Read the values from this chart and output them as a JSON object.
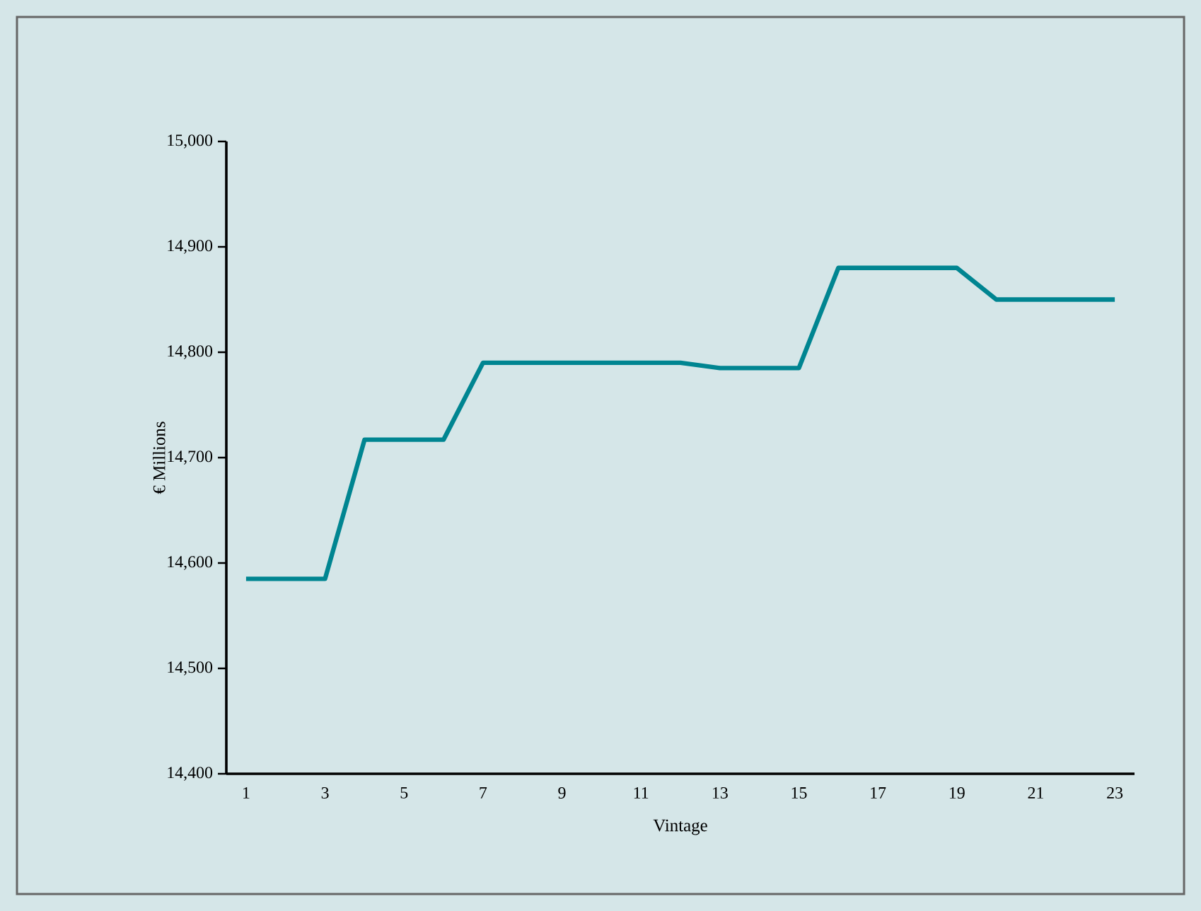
{
  "chart_data": {
    "type": "line",
    "xlabel": "Vintage",
    "ylabel": "€ Millions",
    "categories": [
      "1",
      null,
      "3",
      null,
      "5",
      null,
      "7",
      null,
      "9",
      null,
      "11",
      null,
      "13",
      null,
      "15",
      null,
      "17",
      null,
      "19",
      null,
      "21",
      null,
      "23"
    ],
    "series": [
      {
        "color": "#008591",
        "values": [
          14585,
          14585,
          14585,
          14717,
          14717,
          14717,
          14790,
          14790,
          14790,
          14790,
          14790,
          14790,
          14785,
          14785,
          14785,
          14880,
          14880,
          14880,
          14880,
          14850,
          14850,
          14850,
          14850
        ]
      }
    ],
    "ylim": [
      14400,
      15000
    ],
    "yticks": [
      {
        "value": 14400,
        "label": "14,400"
      },
      {
        "value": 14500,
        "label": "14,500"
      },
      {
        "value": 14600,
        "label": "14,600"
      },
      {
        "value": 14700,
        "label": "14,700"
      },
      {
        "value": 14800,
        "label": "14,800"
      },
      {
        "value": 14900,
        "label": "14,900"
      },
      {
        "value": 15000,
        "label": "15,000"
      }
    ],
    "grid": false,
    "marker": "none",
    "line_style": "solid"
  }
}
